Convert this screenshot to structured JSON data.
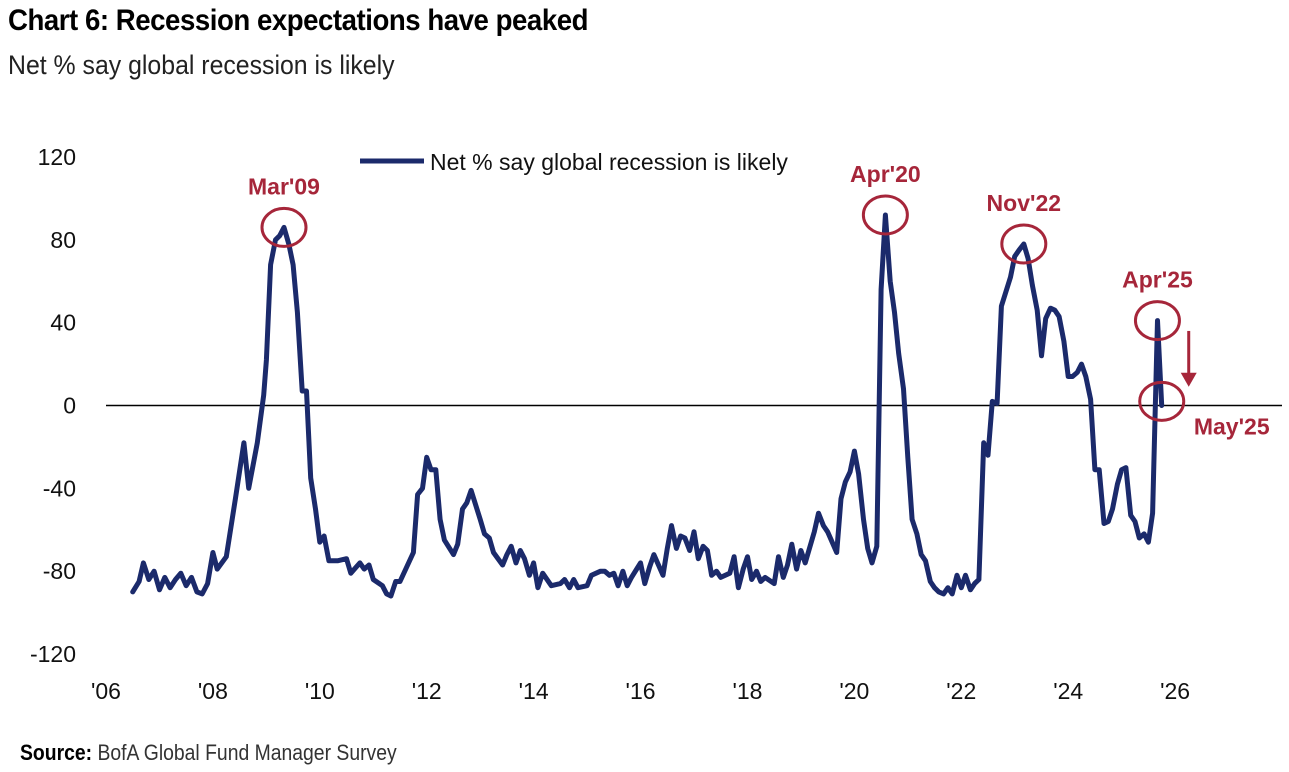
{
  "chart_data": {
    "type": "line",
    "title": "Chart 6: Recession expectations have peaked",
    "subtitle": "Net % say global recession is likely",
    "ylim": [
      -120,
      120
    ],
    "yticks": [
      120,
      80,
      40,
      0,
      -40,
      -80,
      -120
    ],
    "xlim": [
      2006,
      2028
    ],
    "xticks": [
      {
        "value": 2006,
        "label": "'06"
      },
      {
        "value": 2008,
        "label": "'08"
      },
      {
        "value": 2010,
        "label": "'10"
      },
      {
        "value": 2012,
        "label": "'12"
      },
      {
        "value": 2014,
        "label": "'14"
      },
      {
        "value": 2016,
        "label": "'16"
      },
      {
        "value": 2018,
        "label": "'18"
      },
      {
        "value": 2020,
        "label": "'20"
      },
      {
        "value": 2022,
        "label": "'22"
      },
      {
        "value": 2024,
        "label": "'24"
      },
      {
        "value": 2026,
        "label": "'26"
      }
    ],
    "legend": {
      "label": "Net % say global recession is likely",
      "position": "top-center"
    },
    "colors": {
      "line": "#1b2a6b",
      "annotation": "#a6263a",
      "zero_line": "#000000"
    },
    "series": [
      {
        "name": "Net % say global recession is likely",
        "points": [
          [
            2006.5,
            -90
          ],
          [
            2006.62,
            -85
          ],
          [
            2006.7,
            -76
          ],
          [
            2006.8,
            -84
          ],
          [
            2006.9,
            -80
          ],
          [
            2007.0,
            -89
          ],
          [
            2007.1,
            -83
          ],
          [
            2007.2,
            -88
          ],
          [
            2007.3,
            -84
          ],
          [
            2007.4,
            -81
          ],
          [
            2007.5,
            -87
          ],
          [
            2007.6,
            -83
          ],
          [
            2007.7,
            -90
          ],
          [
            2007.8,
            -91
          ],
          [
            2007.9,
            -86
          ],
          [
            2008.0,
            -71
          ],
          [
            2008.08,
            -79
          ],
          [
            2008.25,
            -73
          ],
          [
            2008.42,
            -45
          ],
          [
            2008.58,
            -18
          ],
          [
            2008.67,
            -40
          ],
          [
            2008.83,
            -18
          ],
          [
            2008.95,
            5
          ],
          [
            2009.0,
            22
          ],
          [
            2009.08,
            68
          ],
          [
            2009.17,
            80
          ],
          [
            2009.25,
            82
          ],
          [
            2009.33,
            86
          ],
          [
            2009.42,
            78
          ],
          [
            2009.5,
            68
          ],
          [
            2009.58,
            45
          ],
          [
            2009.67,
            7
          ],
          [
            2009.75,
            7
          ],
          [
            2009.83,
            -35
          ],
          [
            2009.92,
            -50
          ],
          [
            2010.0,
            -66
          ],
          [
            2010.08,
            -63
          ],
          [
            2010.17,
            -75
          ],
          [
            2010.33,
            -75
          ],
          [
            2010.5,
            -74
          ],
          [
            2010.58,
            -81
          ],
          [
            2010.75,
            -76
          ],
          [
            2010.83,
            -79
          ],
          [
            2010.92,
            -77
          ],
          [
            2011.0,
            -84
          ],
          [
            2011.17,
            -87
          ],
          [
            2011.25,
            -91
          ],
          [
            2011.33,
            -92
          ],
          [
            2011.42,
            -85
          ],
          [
            2011.5,
            -85
          ],
          [
            2011.75,
            -71
          ],
          [
            2011.83,
            -43
          ],
          [
            2011.92,
            -40
          ],
          [
            2012.0,
            -25
          ],
          [
            2012.08,
            -31
          ],
          [
            2012.17,
            -31
          ],
          [
            2012.25,
            -55
          ],
          [
            2012.33,
            -65
          ],
          [
            2012.5,
            -72
          ],
          [
            2012.58,
            -67
          ],
          [
            2012.67,
            -50
          ],
          [
            2012.75,
            -47
          ],
          [
            2012.83,
            -41
          ],
          [
            2013.0,
            -55
          ],
          [
            2013.08,
            -62
          ],
          [
            2013.17,
            -64
          ],
          [
            2013.25,
            -71
          ],
          [
            2013.42,
            -77
          ],
          [
            2013.5,
            -72
          ],
          [
            2013.58,
            -68
          ],
          [
            2013.67,
            -76
          ],
          [
            2013.75,
            -70
          ],
          [
            2013.83,
            -74
          ],
          [
            2013.92,
            -82
          ],
          [
            2014.0,
            -76
          ],
          [
            2014.08,
            -88
          ],
          [
            2014.17,
            -81
          ],
          [
            2014.33,
            -87
          ],
          [
            2014.5,
            -86
          ],
          [
            2014.58,
            -84
          ],
          [
            2014.67,
            -88
          ],
          [
            2014.75,
            -84
          ],
          [
            2014.83,
            -88
          ],
          [
            2015.0,
            -87
          ],
          [
            2015.08,
            -82
          ],
          [
            2015.25,
            -80
          ],
          [
            2015.33,
            -80
          ],
          [
            2015.42,
            -82
          ],
          [
            2015.5,
            -81
          ],
          [
            2015.58,
            -87
          ],
          [
            2015.67,
            -80
          ],
          [
            2015.75,
            -87
          ],
          [
            2015.83,
            -83
          ],
          [
            2016.0,
            -76
          ],
          [
            2016.08,
            -86
          ],
          [
            2016.17,
            -78
          ],
          [
            2016.25,
            -72
          ],
          [
            2016.42,
            -82
          ],
          [
            2016.5,
            -69
          ],
          [
            2016.58,
            -58
          ],
          [
            2016.67,
            -69
          ],
          [
            2016.75,
            -63
          ],
          [
            2016.83,
            -64
          ],
          [
            2016.92,
            -70
          ],
          [
            2017.0,
            -61
          ],
          [
            2017.08,
            -74
          ],
          [
            2017.17,
            -68
          ],
          [
            2017.25,
            -70
          ],
          [
            2017.33,
            -82
          ],
          [
            2017.42,
            -80
          ],
          [
            2017.5,
            -83
          ],
          [
            2017.67,
            -81
          ],
          [
            2017.75,
            -73
          ],
          [
            2017.83,
            -88
          ],
          [
            2017.92,
            -79
          ],
          [
            2018.0,
            -73
          ],
          [
            2018.08,
            -84
          ],
          [
            2018.17,
            -80
          ],
          [
            2018.25,
            -85
          ],
          [
            2018.33,
            -83
          ],
          [
            2018.5,
            -86
          ],
          [
            2018.58,
            -73
          ],
          [
            2018.67,
            -83
          ],
          [
            2018.75,
            -77
          ],
          [
            2018.83,
            -67
          ],
          [
            2018.92,
            -79
          ],
          [
            2019.0,
            -70
          ],
          [
            2019.08,
            -76
          ],
          [
            2019.25,
            -61
          ],
          [
            2019.33,
            -52
          ],
          [
            2019.42,
            -58
          ],
          [
            2019.5,
            -61
          ],
          [
            2019.67,
            -71
          ],
          [
            2019.75,
            -45
          ],
          [
            2019.83,
            -37
          ],
          [
            2019.92,
            -32
          ],
          [
            2020.0,
            -22
          ],
          [
            2020.08,
            -33
          ],
          [
            2020.17,
            -55
          ],
          [
            2020.25,
            -69
          ],
          [
            2020.33,
            -76
          ],
          [
            2020.42,
            -68
          ],
          [
            2020.5,
            56
          ],
          [
            2020.58,
            92
          ],
          [
            2020.67,
            60
          ],
          [
            2020.75,
            45
          ],
          [
            2020.83,
            25
          ],
          [
            2020.92,
            8
          ],
          [
            2021.0,
            -25
          ],
          [
            2021.08,
            -55
          ],
          [
            2021.17,
            -62
          ],
          [
            2021.25,
            -72
          ],
          [
            2021.33,
            -75
          ],
          [
            2021.42,
            -85
          ],
          [
            2021.5,
            -88
          ],
          [
            2021.58,
            -90
          ],
          [
            2021.67,
            -91
          ],
          [
            2021.75,
            -88
          ],
          [
            2021.83,
            -91
          ],
          [
            2021.92,
            -82
          ],
          [
            2022.0,
            -88
          ],
          [
            2022.08,
            -82
          ],
          [
            2022.17,
            -89
          ],
          [
            2022.25,
            -86
          ],
          [
            2022.33,
            -84
          ],
          [
            2022.42,
            -18
          ],
          [
            2022.5,
            -24
          ],
          [
            2022.58,
            2
          ],
          [
            2022.67,
            1
          ],
          [
            2022.75,
            48
          ],
          [
            2022.92,
            62
          ],
          [
            2023.0,
            72
          ],
          [
            2023.08,
            75
          ],
          [
            2023.17,
            78
          ],
          [
            2023.25,
            71
          ],
          [
            2023.33,
            58
          ],
          [
            2023.42,
            46
          ],
          [
            2023.5,
            24
          ],
          [
            2023.58,
            42
          ],
          [
            2023.67,
            47
          ],
          [
            2023.75,
            46
          ],
          [
            2023.83,
            43
          ],
          [
            2023.92,
            31
          ],
          [
            2024.0,
            14
          ],
          [
            2024.08,
            14
          ],
          [
            2024.17,
            16
          ],
          [
            2024.25,
            20
          ],
          [
            2024.33,
            14
          ],
          [
            2024.42,
            3
          ],
          [
            2024.5,
            -31
          ],
          [
            2024.58,
            -31
          ],
          [
            2024.67,
            -57
          ],
          [
            2024.75,
            -56
          ],
          [
            2024.83,
            -50
          ],
          [
            2024.92,
            -38
          ],
          [
            2025.0,
            -31
          ],
          [
            2025.08,
            -30
          ],
          [
            2025.17,
            -53
          ],
          [
            2025.25,
            -56
          ],
          [
            2025.33,
            -64
          ],
          [
            2025.42,
            -62
          ],
          [
            2025.5,
            -66
          ],
          [
            2025.58,
            -52
          ],
          [
            2025.67,
            41
          ],
          [
            2025.75,
            0
          ]
        ]
      }
    ],
    "annotations": [
      {
        "label": "Mar'09",
        "x": 2009.33,
        "y": 86
      },
      {
        "label": "Apr'20",
        "x": 2020.58,
        "y": 92
      },
      {
        "label": "Nov'22",
        "x": 2023.17,
        "y": 78
      },
      {
        "label": "Apr'25",
        "x": 2025.67,
        "y": 41
      },
      {
        "label": "May'25",
        "x": 2025.75,
        "y": 2
      }
    ]
  },
  "source": {
    "label": "Source:",
    "text": "BofA Global Fund Manager Survey"
  }
}
